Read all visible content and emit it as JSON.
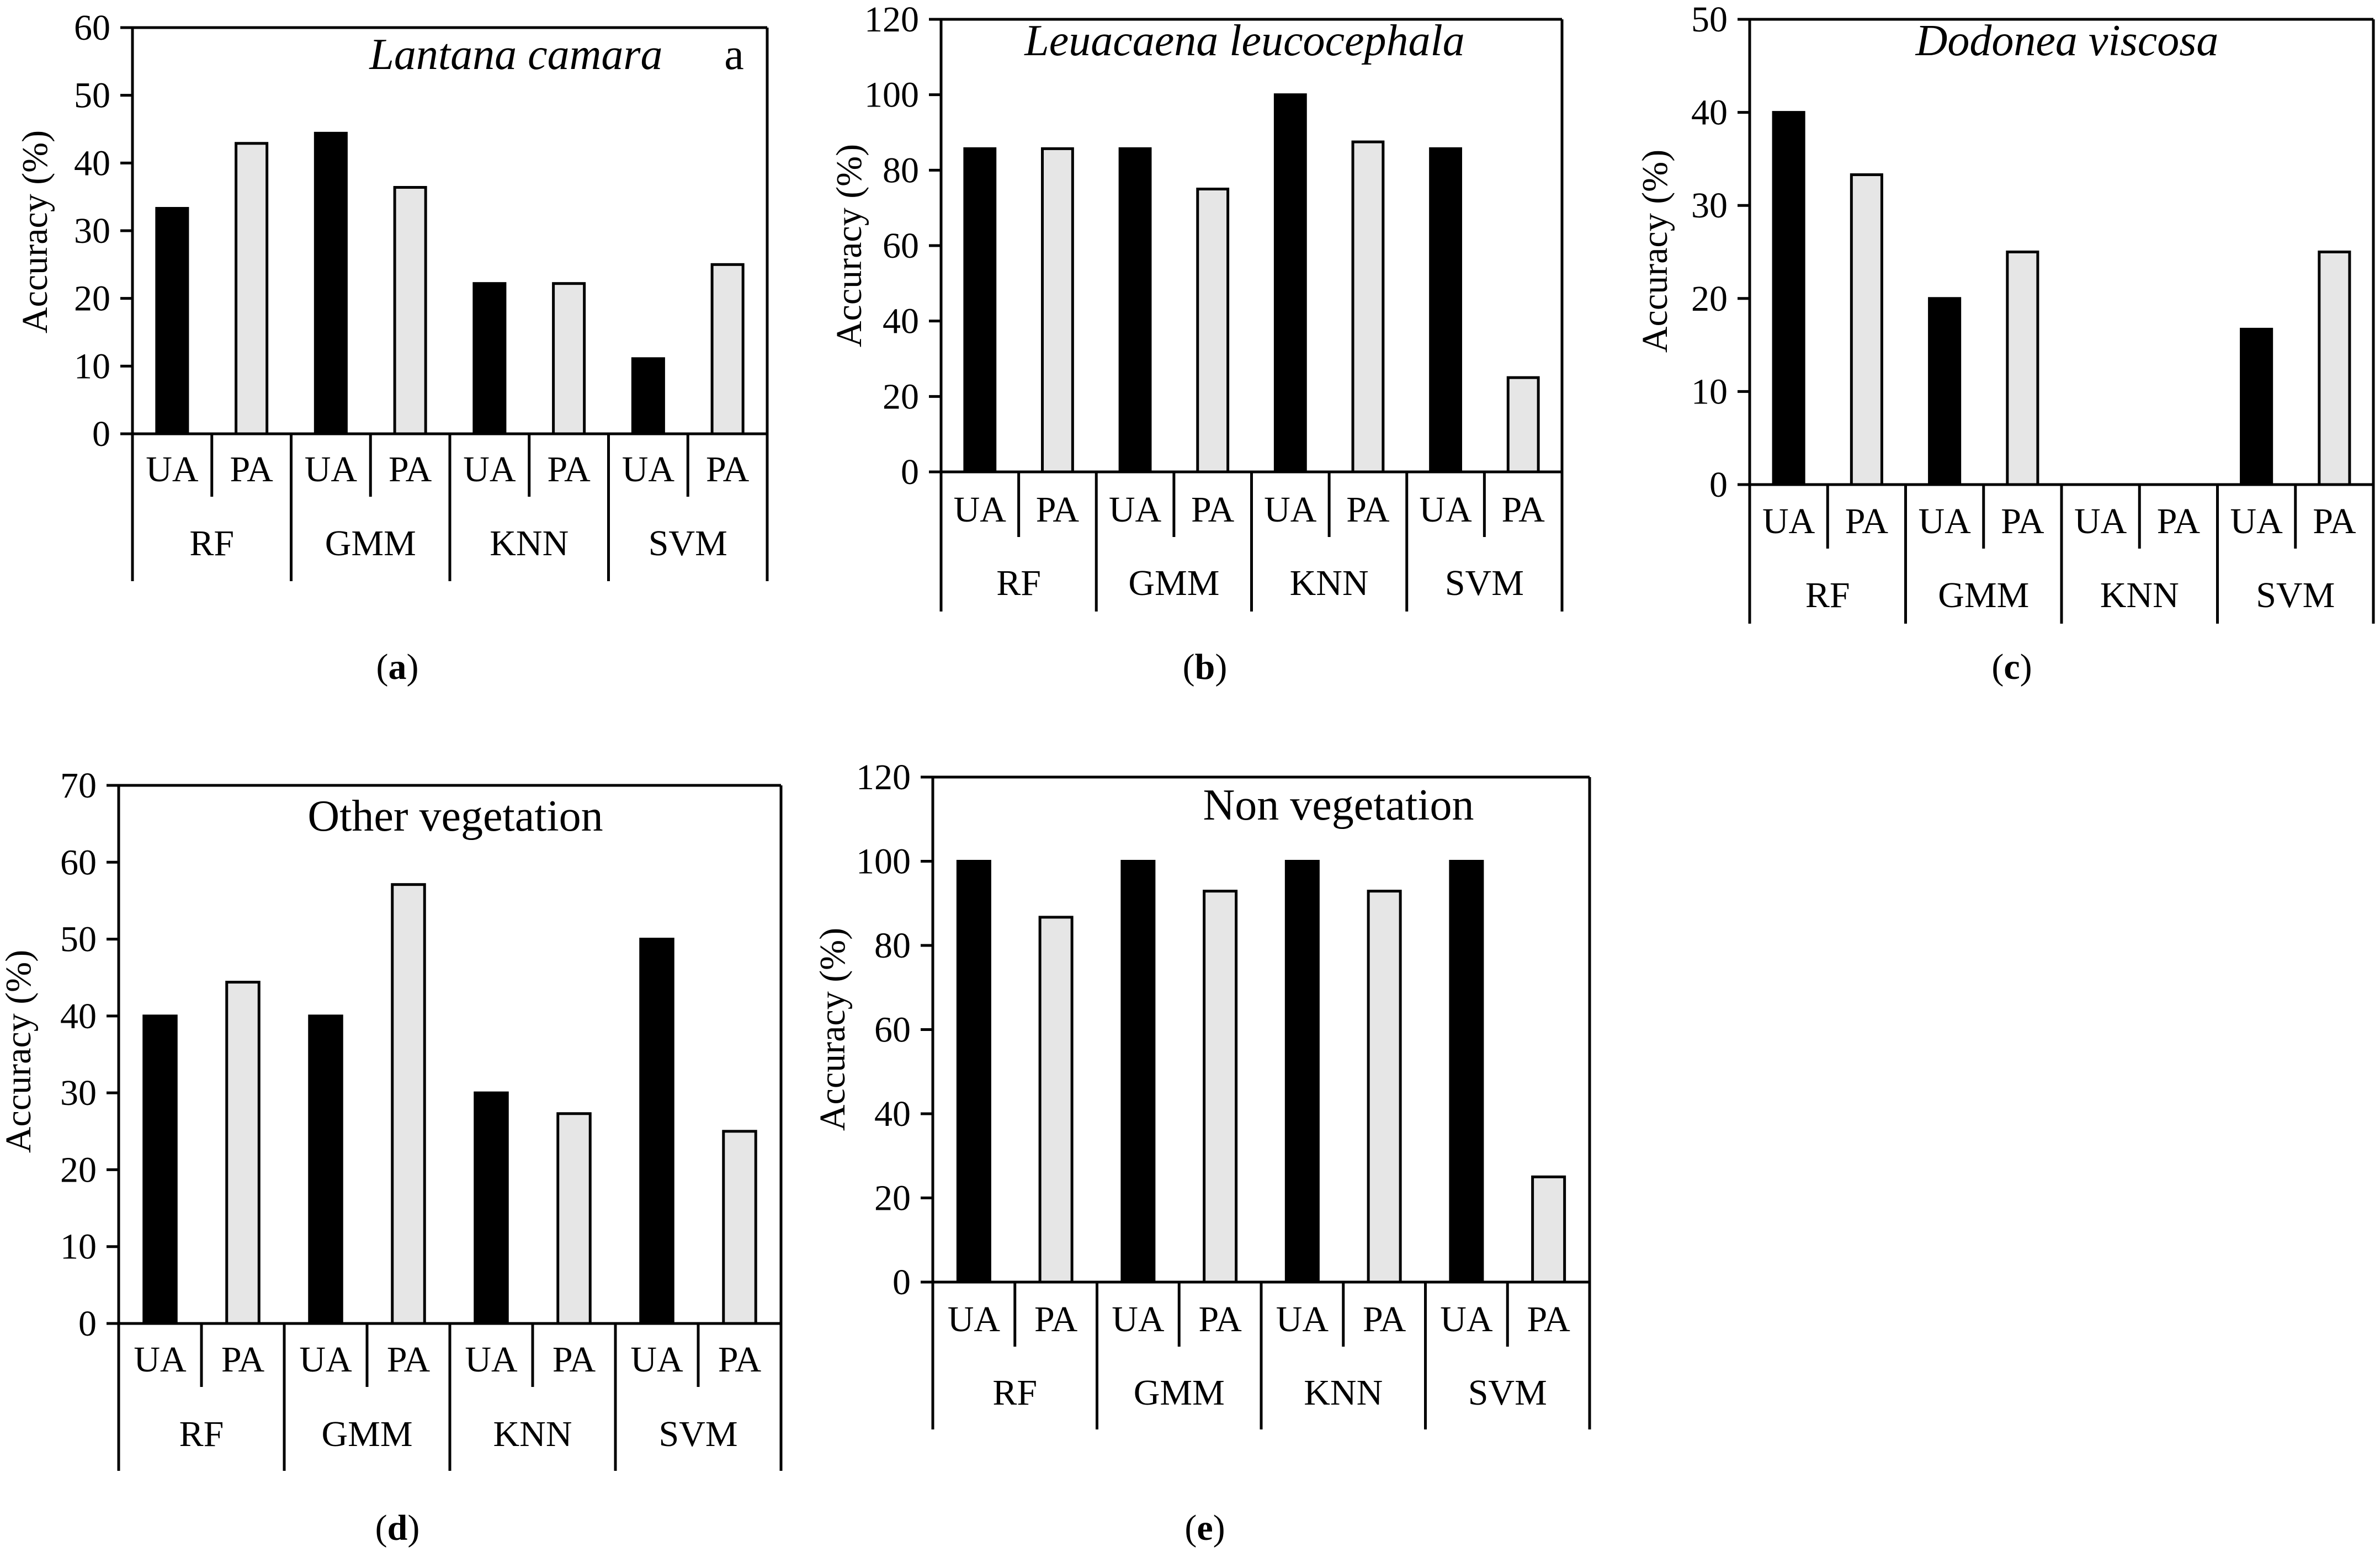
{
  "colors": {
    "ua_bar": "#000000",
    "pa_bar": "#e6e6e6",
    "axis": "#000000",
    "bar_outline": "#000000"
  },
  "chart_data": [
    {
      "type": "bar",
      "panel": "a",
      "title": "Lantana camara",
      "title_style": "italic",
      "corner_letter": "a",
      "ylabel": "Accuracy (%)",
      "ylim": [
        0,
        60
      ],
      "yticks": [
        0,
        10,
        20,
        30,
        40,
        50,
        60
      ],
      "groups": [
        "RF",
        "GMM",
        "KNN",
        "SVM"
      ],
      "categories": [
        "UA",
        "PA"
      ],
      "values": [
        [
          33.3,
          42.9
        ],
        [
          44.4,
          36.4
        ],
        [
          22.2,
          22.2
        ],
        [
          11.1,
          25.0
        ]
      ],
      "caption": {
        "open": "(",
        "letter": "a",
        "close": ")"
      }
    },
    {
      "type": "bar",
      "panel": "b",
      "title": "Leuacaena leucocephala",
      "title_style": "italic",
      "corner_letter": "",
      "ylabel": "Accuracy (%)",
      "ylim": [
        0,
        120
      ],
      "yticks": [
        0,
        20,
        40,
        60,
        80,
        100,
        120
      ],
      "groups": [
        "RF",
        "GMM",
        "KNN",
        "SVM"
      ],
      "categories": [
        "UA",
        "PA"
      ],
      "values": [
        [
          85.7,
          85.7
        ],
        [
          85.7,
          75.0
        ],
        [
          100,
          87.5
        ],
        [
          85.7,
          25.0
        ]
      ],
      "caption": {
        "open": "(",
        "letter": "b",
        "close": ")"
      }
    },
    {
      "type": "bar",
      "panel": "c",
      "title": "Dodonea viscosa",
      "title_style": "italic",
      "corner_letter": "",
      "ylabel": "Accuracy (%)",
      "ylim": [
        0,
        50
      ],
      "yticks": [
        0,
        10,
        20,
        30,
        40,
        50
      ],
      "groups": [
        "RF",
        "GMM",
        "KNN",
        "SVM"
      ],
      "categories": [
        "UA",
        "PA"
      ],
      "values": [
        [
          40.0,
          33.3
        ],
        [
          20.0,
          25.0
        ],
        [
          0,
          0
        ],
        [
          16.7,
          25.0
        ]
      ],
      "caption": {
        "open": "(",
        "letter": "c",
        "close": ")"
      }
    },
    {
      "type": "bar",
      "panel": "d",
      "title": "Other vegetation",
      "title_style": "normal",
      "corner_letter": "",
      "ylabel": "Accuracy (%)",
      "ylim": [
        0,
        70
      ],
      "yticks": [
        0,
        10,
        20,
        30,
        40,
        50,
        60,
        70
      ],
      "groups": [
        "RF",
        "GMM",
        "KNN",
        "SVM"
      ],
      "categories": [
        "UA",
        "PA"
      ],
      "values": [
        [
          40.0,
          44.4
        ],
        [
          40.0,
          57.1
        ],
        [
          30.0,
          27.3
        ],
        [
          50.0,
          25.0
        ]
      ],
      "caption": {
        "open": "(",
        "letter": "d",
        "close": ")"
      }
    },
    {
      "type": "bar",
      "panel": "e",
      "title": "Non vegetation",
      "title_style": "normal",
      "corner_letter": "",
      "ylabel": "Accuracy (%)",
      "ylim": [
        0,
        120
      ],
      "yticks": [
        0,
        20,
        40,
        60,
        80,
        100,
        120
      ],
      "groups": [
        "RF",
        "GMM",
        "KNN",
        "SVM"
      ],
      "categories": [
        "UA",
        "PA"
      ],
      "values": [
        [
          100,
          86.7
        ],
        [
          100,
          92.9
        ],
        [
          100,
          92.9
        ],
        [
          100,
          25.0
        ]
      ],
      "caption": {
        "open": "(",
        "letter": "e",
        "close": ")"
      }
    }
  ]
}
